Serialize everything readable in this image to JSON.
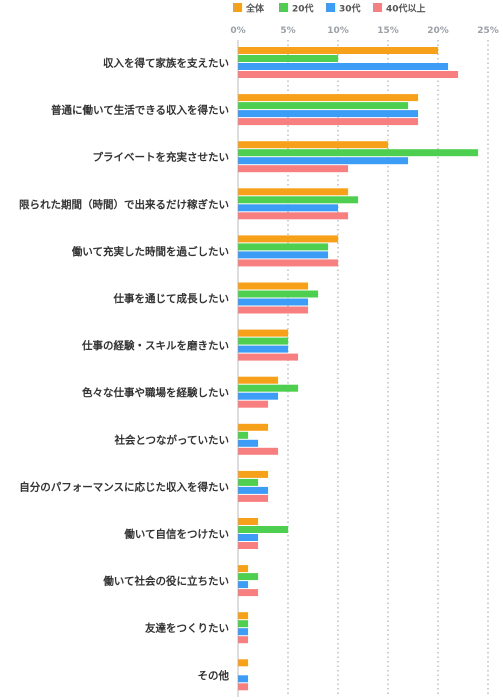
{
  "chart_data": {
    "type": "bar",
    "orientation": "horizontal",
    "title": "",
    "xlabel": "",
    "ylabel": "",
    "xlim": [
      0,
      25
    ],
    "ticks": [
      "0%",
      "5%",
      "10%",
      "15%",
      "20%",
      "25%"
    ],
    "grid": true,
    "legend_position": "top",
    "categories": [
      "収入を得て家族を支えたい",
      "普通に働いて生活できる収入を得たい",
      "プライベートを充実させたい",
      "限られた期間（時間）で出来るだけ稼ぎたい",
      "働いて充実した時間を過ごしたい",
      "仕事を通じて成長したい",
      "仕事の経験・スキルを磨きたい",
      "色々な仕事や職場を経験したい",
      "社会とつながっていたい",
      "自分のパフォーマンスに応じた収入を得たい",
      "働いて自信をつけたい",
      "働いて社会の役に立ちたい",
      "友達をつくりたい",
      "その他"
    ],
    "series": [
      {
        "name": "全体",
        "color": "#f7a11a",
        "values": [
          20,
          18,
          15,
          11,
          10,
          7,
          5,
          4,
          3,
          3,
          2,
          1,
          1,
          1
        ]
      },
      {
        "name": "20代",
        "color": "#4fcf4f",
        "values": [
          10,
          17,
          24,
          12,
          9,
          8,
          5,
          6,
          1,
          2,
          5,
          2,
          1,
          0
        ]
      },
      {
        "name": "30代",
        "color": "#3d9cf5",
        "values": [
          21,
          18,
          17,
          10,
          9,
          7,
          5,
          4,
          2,
          3,
          2,
          1,
          1,
          1
        ]
      },
      {
        "name": "40代以上",
        "color": "#f77f7f",
        "values": [
          22,
          18,
          11,
          11,
          10,
          7,
          6,
          3,
          4,
          3,
          2,
          2,
          1,
          1
        ]
      }
    ]
  }
}
